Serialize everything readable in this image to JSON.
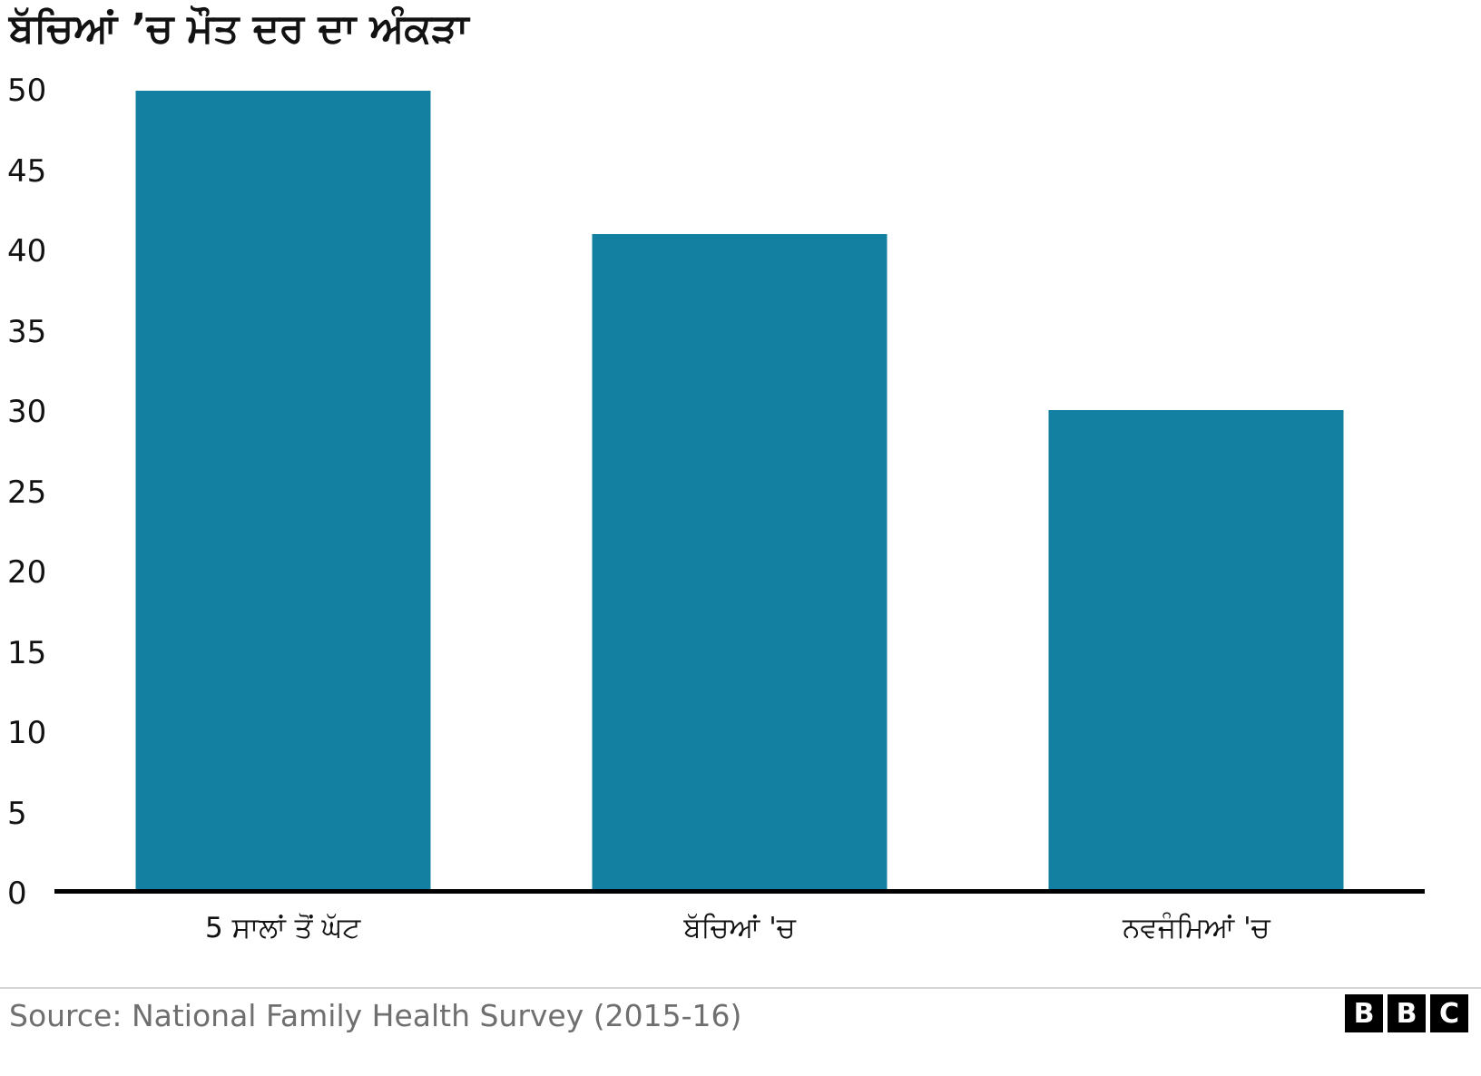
{
  "chart_data": {
    "type": "bar",
    "title": "ਬੱਚਿਆਂ ’ਚ ਮੌਤ ਦਰ ਦਾ ਅੰਕੜਾ",
    "categories": [
      "5 ਸਾਲਾਂ ਤੋਂ ਘੱਟ",
      "ਬੱਚਿਆਂ 'ਚ",
      "ਨਵਜੰਮਿਆਂ 'ਚ"
    ],
    "values": [
      50,
      41,
      30
    ],
    "xlabel": "",
    "ylabel": "",
    "ylim": [
      0,
      50
    ],
    "yticks": [
      0,
      5,
      10,
      15,
      20,
      25,
      30,
      35,
      40,
      45,
      50
    ],
    "bar_color": "#1380A1",
    "axis_color": "#000000",
    "grid": false,
    "legend": false
  },
  "footer": {
    "source": "Source: National Family Health Survey (2015-16)",
    "logo_letters": [
      "B",
      "B",
      "C"
    ]
  }
}
